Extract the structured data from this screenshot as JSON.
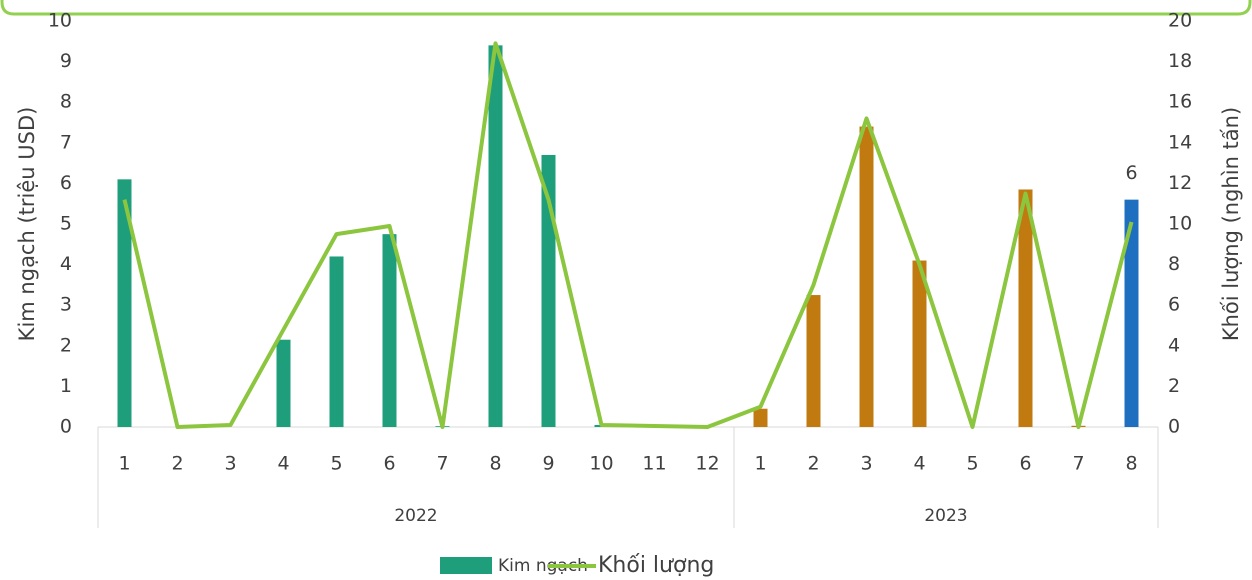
{
  "chart_data": {
    "type": "bar-line",
    "groups": [
      {
        "name": "2022",
        "categories": [
          "1",
          "2",
          "3",
          "4",
          "5",
          "6",
          "7",
          "8",
          "9",
          "10",
          "11",
          "12"
        ]
      },
      {
        "name": "2023",
        "categories": [
          "1",
          "2",
          "3",
          "4",
          "5",
          "6",
          "7",
          "8"
        ]
      }
    ],
    "series": [
      {
        "name": "Kim ngạch",
        "type": "bar",
        "axis": "y",
        "color": "#1f9e7b",
        "colors": [
          "#1f9e7b",
          "#1f9e7b",
          "#1f9e7b",
          "#1f9e7b",
          "#1f9e7b",
          "#1f9e7b",
          "#1f9e7b",
          "#1f9e7b",
          "#1f9e7b",
          "#1f9e7b",
          "#1f9e7b",
          "#1f9e7b",
          "#c07a10",
          "#c07a10",
          "#c07a10",
          "#c07a10",
          "#c07a10",
          "#c07a10",
          "#c07a10",
          "#1f6fc0"
        ],
        "values": [
          6.1,
          0,
          0,
          2.15,
          4.2,
          4.75,
          0.02,
          9.4,
          6.7,
          0.05,
          0,
          0,
          0.45,
          3.25,
          7.4,
          4.1,
          0,
          5.85,
          0.03,
          5.6
        ],
        "value_labels": [
          null,
          null,
          null,
          null,
          null,
          null,
          null,
          null,
          null,
          null,
          null,
          null,
          null,
          null,
          null,
          null,
          null,
          null,
          null,
          "6"
        ]
      },
      {
        "name": "Khối lượng",
        "type": "line",
        "axis": "y2",
        "color": "#8cc63f",
        "values": [
          11.2,
          0,
          0.1,
          4.8,
          9.5,
          9.9,
          0,
          18.9,
          11.2,
          0.1,
          0.05,
          0,
          1.0,
          7.0,
          15.2,
          8.0,
          0,
          11.5,
          0,
          10.1
        ]
      }
    ],
    "ylabel": "Kim ngạch (triệu USD)",
    "y2label": "Khối lượng (nghìn tấn)",
    "ylim": [
      0,
      10
    ],
    "yticks": [
      0,
      1,
      2,
      3,
      4,
      5,
      6,
      7,
      8,
      9,
      10
    ],
    "y2lim": [
      0,
      20
    ],
    "y2ticks": [
      0,
      2,
      4,
      6,
      8,
      10,
      12,
      14,
      16,
      18,
      20
    ],
    "legend": "bottom"
  }
}
